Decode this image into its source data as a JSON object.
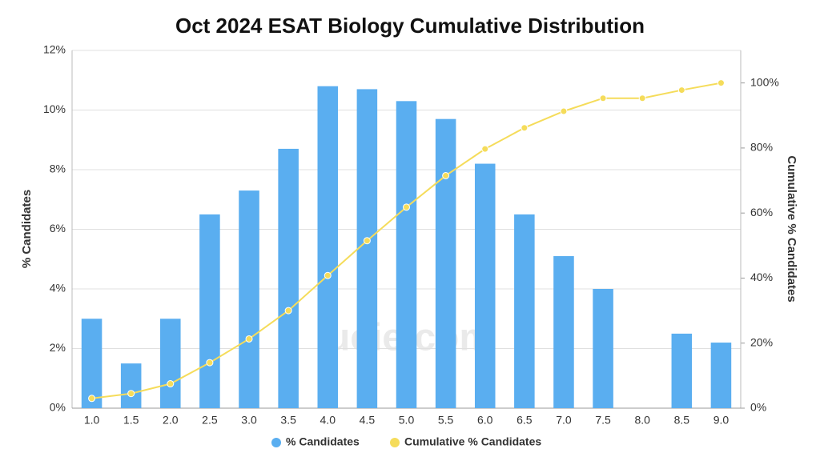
{
  "chart_data": {
    "type": "bar-line",
    "title": "Oct 2024 ESAT Biology Cumulative Distribution",
    "watermark": "ueie.com",
    "y_label": "% Candidates",
    "y2_label": "Cumulative % Candidates",
    "categories": [
      "1.0",
      "1.5",
      "2.0",
      "2.5",
      "3.0",
      "3.5",
      "4.0",
      "4.5",
      "5.0",
      "5.5",
      "6.0",
      "6.5",
      "7.0",
      "7.5",
      "8.0",
      "8.5",
      "9.0"
    ],
    "series": [
      {
        "name": "% Candidates",
        "type": "bar",
        "color": "#5aaef0",
        "values": [
          3.0,
          1.5,
          3.0,
          6.5,
          7.3,
          8.7,
          10.8,
          10.7,
          10.3,
          9.7,
          8.2,
          6.5,
          5.1,
          4.0,
          0,
          2.5,
          2.2
        ]
      },
      {
        "name": "Cumulative % Candidates",
        "type": "line",
        "axis": "y2",
        "color": "#f5dc5a",
        "values": [
          3.0,
          4.5,
          7.5,
          14.0,
          21.3,
          30.0,
          40.8,
          51.5,
          61.8,
          71.5,
          79.7,
          86.2,
          91.3,
          95.3,
          95.3,
          97.8,
          100.0
        ]
      }
    ],
    "ylim": [
      0,
      12
    ],
    "yticks": [
      {
        "value": 0,
        "label": "0%"
      },
      {
        "value": 2,
        "label": "2%"
      },
      {
        "value": 4,
        "label": "4%"
      },
      {
        "value": 6,
        "label": "6%"
      },
      {
        "value": 8,
        "label": "8%"
      },
      {
        "value": 10,
        "label": "10%"
      },
      {
        "value": 12,
        "label": "12%"
      }
    ],
    "y2lim": [
      0,
      110
    ],
    "y2ticks": [
      {
        "value": 0,
        "label": "0%"
      },
      {
        "value": 20,
        "label": "20%"
      },
      {
        "value": 40,
        "label": "40%"
      },
      {
        "value": 60,
        "label": "60%"
      },
      {
        "value": 80,
        "label": "80%"
      },
      {
        "value": 100,
        "label": "100%"
      }
    ],
    "grid": true
  }
}
